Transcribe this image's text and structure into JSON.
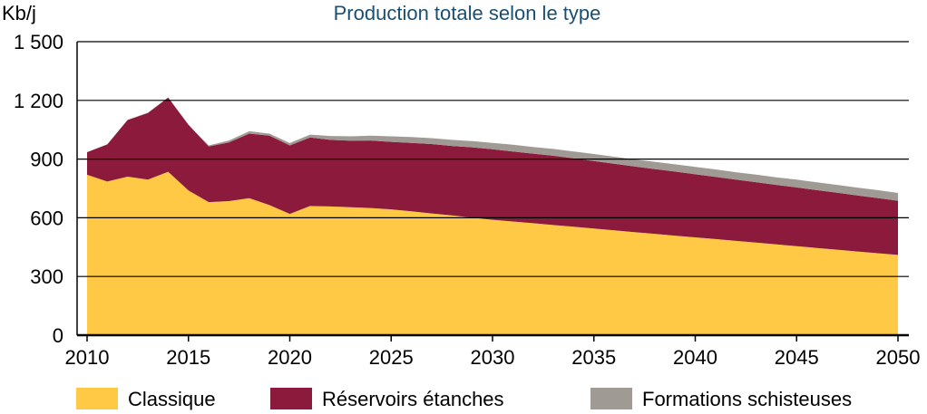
{
  "chart_data": {
    "type": "area",
    "stacked": true,
    "title": "Production totale selon le type",
    "ylabel": "Kb/j",
    "xlabel": "",
    "xlim": [
      2010,
      2050
    ],
    "ylim": [
      0,
      1500
    ],
    "y_ticks": [
      0,
      300,
      600,
      900,
      1200,
      1500
    ],
    "y_tick_labels": [
      "0",
      "300",
      "600",
      "900",
      "1 200",
      "1 500"
    ],
    "x_ticks": [
      2010,
      2015,
      2020,
      2025,
      2030,
      2035,
      2040,
      2045,
      2050
    ],
    "grid": "horizontal",
    "legend_position": "bottom",
    "x": [
      2010,
      2011,
      2012,
      2013,
      2014,
      2015,
      2016,
      2017,
      2018,
      2019,
      2020,
      2021,
      2022,
      2023,
      2024,
      2025,
      2026,
      2027,
      2028,
      2029,
      2030,
      2031,
      2032,
      2033,
      2034,
      2035,
      2036,
      2037,
      2038,
      2039,
      2040,
      2041,
      2042,
      2043,
      2044,
      2045,
      2046,
      2047,
      2048,
      2049,
      2050
    ],
    "series": [
      {
        "name": "Classique",
        "color": "#ffc845",
        "values": [
          820,
          785,
          810,
          795,
          835,
          740,
          680,
          685,
          700,
          665,
          620,
          660,
          658,
          654,
          650,
          643,
          633,
          622,
          612,
          600,
          590,
          581,
          572,
          563,
          554,
          545,
          536,
          527,
          518,
          509,
          500,
          491,
          482,
          473,
          464,
          455,
          446,
          437,
          428,
          419,
          410
        ]
      },
      {
        "name": "Réservoirs étanches",
        "color": "#8b1a3c",
        "values": [
          115,
          190,
          290,
          340,
          380,
          335,
          285,
          300,
          330,
          355,
          350,
          350,
          340,
          340,
          345,
          345,
          350,
          355,
          355,
          360,
          360,
          358,
          356,
          354,
          350,
          345,
          340,
          335,
          331,
          327,
          322,
          318,
          313,
          309,
          304,
          300,
          295,
          291,
          286,
          282,
          277
        ]
      },
      {
        "name": "Formations schisteuses",
        "color": "#9f9a94",
        "values": [
          0,
          0,
          0,
          3,
          0,
          0,
          5,
          10,
          12,
          10,
          12,
          15,
          20,
          22,
          25,
          28,
          30,
          30,
          31,
          32,
          33,
          34,
          34,
          35,
          35,
          36,
          36,
          36,
          37,
          37,
          38,
          38,
          38,
          39,
          39,
          40,
          40,
          40,
          40,
          40,
          40
        ]
      }
    ]
  }
}
